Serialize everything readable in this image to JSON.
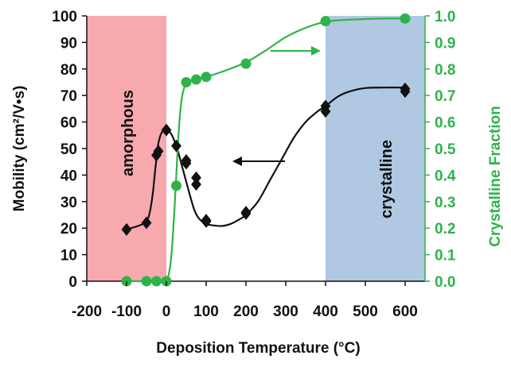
{
  "chart_data": {
    "type": "scatter",
    "xlabel": "Deposition Temperature (°C)",
    "ylabel_left": "Mobility (cm²/V•s)",
    "ylabel_right": "Crystalline Fraction",
    "xlim": [
      -200,
      650
    ],
    "ylim_left": [
      0,
      100
    ],
    "ylim_right": [
      0.0,
      1.0
    ],
    "x_ticks": [
      "-200",
      "-100",
      "0",
      "100",
      "200",
      "300",
      "400",
      "500",
      "600"
    ],
    "x_tick_values": [
      -200,
      -100,
      0,
      100,
      200,
      300,
      400,
      500,
      600
    ],
    "y_left_ticks": [
      "0",
      "10",
      "20",
      "30",
      "40",
      "50",
      "60",
      "70",
      "80",
      "90",
      "100"
    ],
    "y_left_tick_values": [
      0,
      10,
      20,
      30,
      40,
      50,
      60,
      70,
      80,
      90,
      100
    ],
    "y_right_ticks": [
      "0.0",
      "0.1",
      "0.2",
      "0.3",
      "0.4",
      "0.5",
      "0.6",
      "0.7",
      "0.8",
      "0.9",
      "1.0"
    ],
    "y_right_tick_values": [
      0,
      0.1,
      0.2,
      0.3,
      0.4,
      0.5,
      0.6,
      0.7,
      0.8,
      0.9,
      1.0
    ],
    "regions": [
      {
        "name": "amorphous",
        "label": "amorphous",
        "x_from": -200,
        "x_to": 0,
        "color": "#f7a9ae"
      },
      {
        "name": "crystalline",
        "label": "crystalline",
        "x_from": 400,
        "x_to": 650,
        "color": "#b0c8e2"
      }
    ],
    "series": [
      {
        "name": "Mobility",
        "axis": "left",
        "marker": "diamond",
        "color": "#111111",
        "x": [
          -100,
          -50,
          -25,
          -20,
          0,
          25,
          50,
          50,
          75,
          75,
          100,
          100,
          200,
          200,
          400,
          400,
          600,
          600
        ],
        "y": [
          19.5,
          22,
          47.5,
          49,
          57,
          51,
          45.5,
          44.5,
          39,
          36.5,
          23,
          22.5,
          26,
          25.5,
          66,
          64,
          72.5,
          71.5
        ],
        "fit_x": [
          -100,
          -60,
          -45,
          -35,
          -28,
          -20,
          -10,
          0,
          10,
          20,
          30,
          40,
          50,
          60,
          70,
          80,
          90,
          100,
          120,
          140,
          160,
          180,
          200,
          230,
          260,
          290,
          320,
          350,
          380,
          400,
          430,
          460,
          500,
          550,
          600
        ],
        "fit_y": [
          19.5,
          21.5,
          24,
          32,
          42,
          52,
          56.5,
          57,
          56,
          53,
          48.5,
          43,
          37.5,
          32,
          27,
          24,
          22.5,
          21.5,
          21,
          20.8,
          21.5,
          23,
          25,
          30,
          38,
          46,
          54,
          60,
          64,
          66,
          69.5,
          71.5,
          72.8,
          73,
          73
        ],
        "arrow_direction": "left"
      },
      {
        "name": "Crystalline Fraction",
        "axis": "right",
        "marker": "circle",
        "color": "#2db34a",
        "x": [
          -100,
          -50,
          -25,
          0,
          25,
          50,
          75,
          100,
          200,
          400,
          600
        ],
        "y": [
          0.0,
          0.0,
          0.0,
          0.0,
          0.36,
          0.75,
          0.76,
          0.77,
          0.82,
          0.98,
          0.99
        ],
        "fit_x": [
          -100,
          -60,
          -20,
          0,
          5,
          10,
          15,
          20,
          25,
          30,
          35,
          40,
          45,
          50,
          60,
          75,
          100,
          150,
          200,
          250,
          300,
          350,
          400,
          450,
          500,
          550,
          600
        ],
        "fit_y": [
          0.0,
          0.0,
          0.0,
          0.0,
          0.02,
          0.06,
          0.14,
          0.26,
          0.4,
          0.54,
          0.64,
          0.7,
          0.73,
          0.745,
          0.755,
          0.762,
          0.77,
          0.795,
          0.825,
          0.87,
          0.92,
          0.955,
          0.978,
          0.985,
          0.988,
          0.99,
          0.99
        ],
        "arrow_direction": "right"
      }
    ]
  },
  "colors": {
    "axis_left": "#111111",
    "axis_right": "#2db34a",
    "amorphous_fill": "#f7a9ae",
    "crystalline_fill": "#b0c8e2"
  }
}
